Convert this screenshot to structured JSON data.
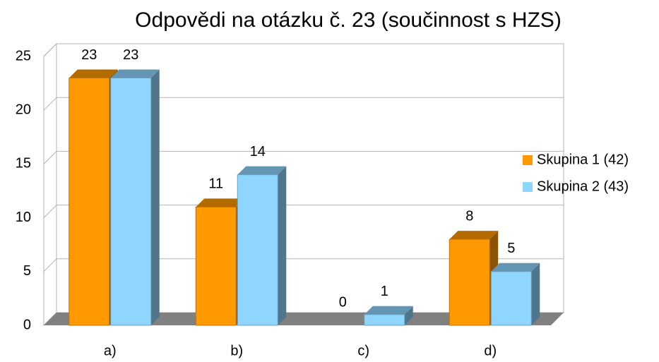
{
  "chart_data": {
    "type": "bar",
    "title": "Odpovědi na otázku č. 23 (součinnost s HZS)",
    "categories": [
      "a)",
      "b)",
      "c)",
      "d)"
    ],
    "series": [
      {
        "name": "Skupina 1 (42)",
        "color": "#ff9900",
        "values": [
          23,
          11,
          0,
          8
        ]
      },
      {
        "name": "Skupina 2 (43)",
        "color": "#8fd6ff",
        "values": [
          23,
          14,
          1,
          5
        ]
      }
    ],
    "ylim": [
      0,
      25
    ],
    "yticks": [
      0,
      5,
      10,
      15,
      20,
      25
    ],
    "grid": true,
    "legend": "right"
  }
}
